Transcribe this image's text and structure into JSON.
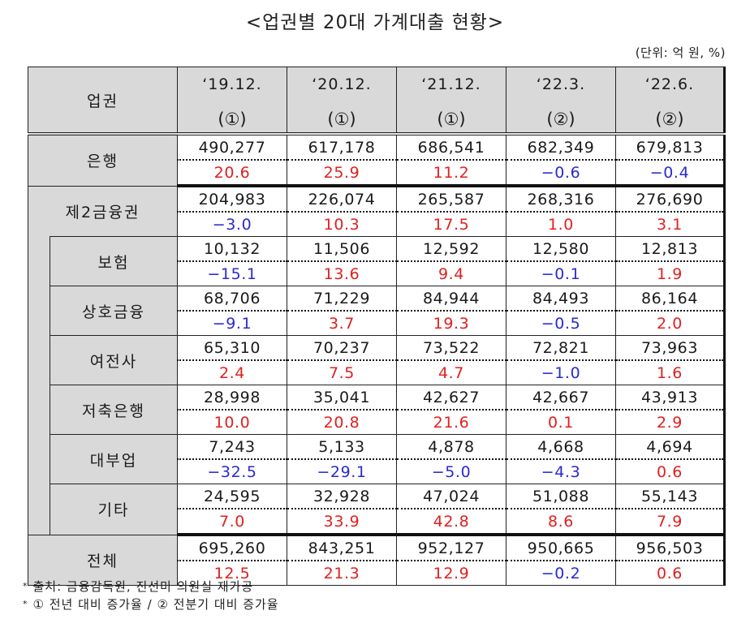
{
  "title": "<업권별 20대 가계대출 현황>",
  "unit": "(단위: 억 원, %)",
  "header": {
    "label": "업권",
    "columns": [
      {
        "period": "‘19.12.",
        "basis": "(①)"
      },
      {
        "period": "‘20.12.",
        "basis": "(①)"
      },
      {
        "period": "‘21.12.",
        "basis": "(①)"
      },
      {
        "period": "‘22.3.",
        "basis": "(②)"
      },
      {
        "period": "‘22.6.",
        "basis": "(②)"
      }
    ]
  },
  "rows": [
    {
      "label": "은행",
      "level": 0,
      "amounts": [
        "490,277",
        "617,178",
        "686,541",
        "682,349",
        "679,813"
      ],
      "rates": [
        "20.6",
        "25.9",
        "11.2",
        "−0.6",
        "−0.4"
      ],
      "signs": [
        "pos",
        "pos",
        "pos",
        "neg",
        "neg"
      ]
    },
    {
      "label": "제2금융권",
      "level": 0,
      "amounts": [
        "204,983",
        "226,074",
        "265,587",
        "268,316",
        "276,690"
      ],
      "rates": [
        "−3.0",
        "10.3",
        "17.5",
        "1.0",
        "3.1"
      ],
      "signs": [
        "neg",
        "pos",
        "pos",
        "pos",
        "pos"
      ]
    },
    {
      "label": "보험",
      "level": 1,
      "amounts": [
        "10,132",
        "11,506",
        "12,592",
        "12,580",
        "12,813"
      ],
      "rates": [
        "−15.1",
        "13.6",
        "9.4",
        "−0.1",
        "1.9"
      ],
      "signs": [
        "neg",
        "pos",
        "pos",
        "neg",
        "pos"
      ]
    },
    {
      "label": "상호금융",
      "level": 1,
      "amounts": [
        "68,706",
        "71,229",
        "84,944",
        "84,493",
        "86,164"
      ],
      "rates": [
        "−9.1",
        "3.7",
        "19.3",
        "−0.5",
        "2.0"
      ],
      "signs": [
        "neg",
        "pos",
        "pos",
        "neg",
        "pos"
      ]
    },
    {
      "label": "여전사",
      "level": 1,
      "amounts": [
        "65,310",
        "70,237",
        "73,522",
        "72,821",
        "73,963"
      ],
      "rates": [
        "2.4",
        "7.5",
        "4.7",
        "−1.0",
        "1.6"
      ],
      "signs": [
        "pos",
        "pos",
        "pos",
        "neg",
        "pos"
      ]
    },
    {
      "label": "저축은행",
      "level": 1,
      "amounts": [
        "28,998",
        "35,041",
        "42,627",
        "42,667",
        "43,913"
      ],
      "rates": [
        "10.0",
        "20.8",
        "21.6",
        "0.1",
        "2.9"
      ],
      "signs": [
        "pos",
        "pos",
        "pos",
        "pos",
        "pos"
      ]
    },
    {
      "label": "대부업",
      "level": 1,
      "amounts": [
        "7,243",
        "5,133",
        "4,878",
        "4,668",
        "4,694"
      ],
      "rates": [
        "−32.5",
        "−29.1",
        "−5.0",
        "−4.3",
        "0.6"
      ],
      "signs": [
        "neg",
        "neg",
        "neg",
        "neg",
        "pos"
      ]
    },
    {
      "label": "기타",
      "level": 1,
      "amounts": [
        "24,595",
        "32,928",
        "47,024",
        "51,088",
        "55,143"
      ],
      "rates": [
        "7.0",
        "33.9",
        "42.8",
        "8.6",
        "7.9"
      ],
      "signs": [
        "pos",
        "pos",
        "pos",
        "pos",
        "pos"
      ]
    },
    {
      "label": "전체",
      "level": 0,
      "amounts": [
        "695,260",
        "843,251",
        "952,127",
        "950,665",
        "956,503"
      ],
      "rates": [
        "12.5",
        "21.3",
        "12.9",
        "−0.2",
        "0.6"
      ],
      "signs": [
        "pos",
        "pos",
        "pos",
        "neg",
        "pos"
      ]
    }
  ],
  "colors": {
    "positive": "#e02020",
    "negative": "#2a2ad0",
    "header_fill": "#d9d9d9"
  },
  "footnotes": [
    "출처: 금융감독원, 진선미 의원실 재가공",
    "① 전년 대비 증가율 / ② 전분기 대비 증가율"
  ],
  "footnote_marker": "*",
  "chart_data": {
    "type": "table",
    "title": "<업권별 20대 가계대출 현황>",
    "unit": "(단위: 억 원, %)",
    "columns": [
      "‘19.12.(①)",
      "‘20.12.(①)",
      "‘21.12.(①)",
      "‘22.3.(②)",
      "‘22.6.(②)"
    ],
    "rows": [
      {
        "sector": "은행",
        "amount": [
          490277,
          617178,
          686541,
          682349,
          679813
        ],
        "rate": [
          20.6,
          25.9,
          11.2,
          -0.6,
          -0.4
        ]
      },
      {
        "sector": "제2금융권",
        "amount": [
          204983,
          226074,
          265587,
          268316,
          276690
        ],
        "rate": [
          -3.0,
          10.3,
          17.5,
          1.0,
          3.1
        ]
      },
      {
        "sector": "보험",
        "amount": [
          10132,
          11506,
          12592,
          12580,
          12813
        ],
        "rate": [
          -15.1,
          13.6,
          9.4,
          -0.1,
          1.9
        ]
      },
      {
        "sector": "상호금융",
        "amount": [
          68706,
          71229,
          84944,
          84493,
          86164
        ],
        "rate": [
          -9.1,
          3.7,
          19.3,
          -0.5,
          2.0
        ]
      },
      {
        "sector": "여전사",
        "amount": [
          65310,
          70237,
          73522,
          72821,
          73963
        ],
        "rate": [
          2.4,
          7.5,
          4.7,
          -1.0,
          1.6
        ]
      },
      {
        "sector": "저축은행",
        "amount": [
          28998,
          35041,
          42627,
          42667,
          43913
        ],
        "rate": [
          10.0,
          20.8,
          21.6,
          0.1,
          2.9
        ]
      },
      {
        "sector": "대부업",
        "amount": [
          7243,
          5133,
          4878,
          4668,
          4694
        ],
        "rate": [
          -32.5,
          -29.1,
          -5.0,
          -4.3,
          0.6
        ]
      },
      {
        "sector": "기타",
        "amount": [
          24595,
          32928,
          47024,
          51088,
          55143
        ],
        "rate": [
          7.0,
          33.9,
          42.8,
          8.6,
          7.9
        ]
      },
      {
        "sector": "전체",
        "amount": [
          695260,
          843251,
          952127,
          950665,
          956503
        ],
        "rate": [
          12.5,
          21.3,
          12.9,
          -0.2,
          0.6
        ]
      }
    ]
  }
}
